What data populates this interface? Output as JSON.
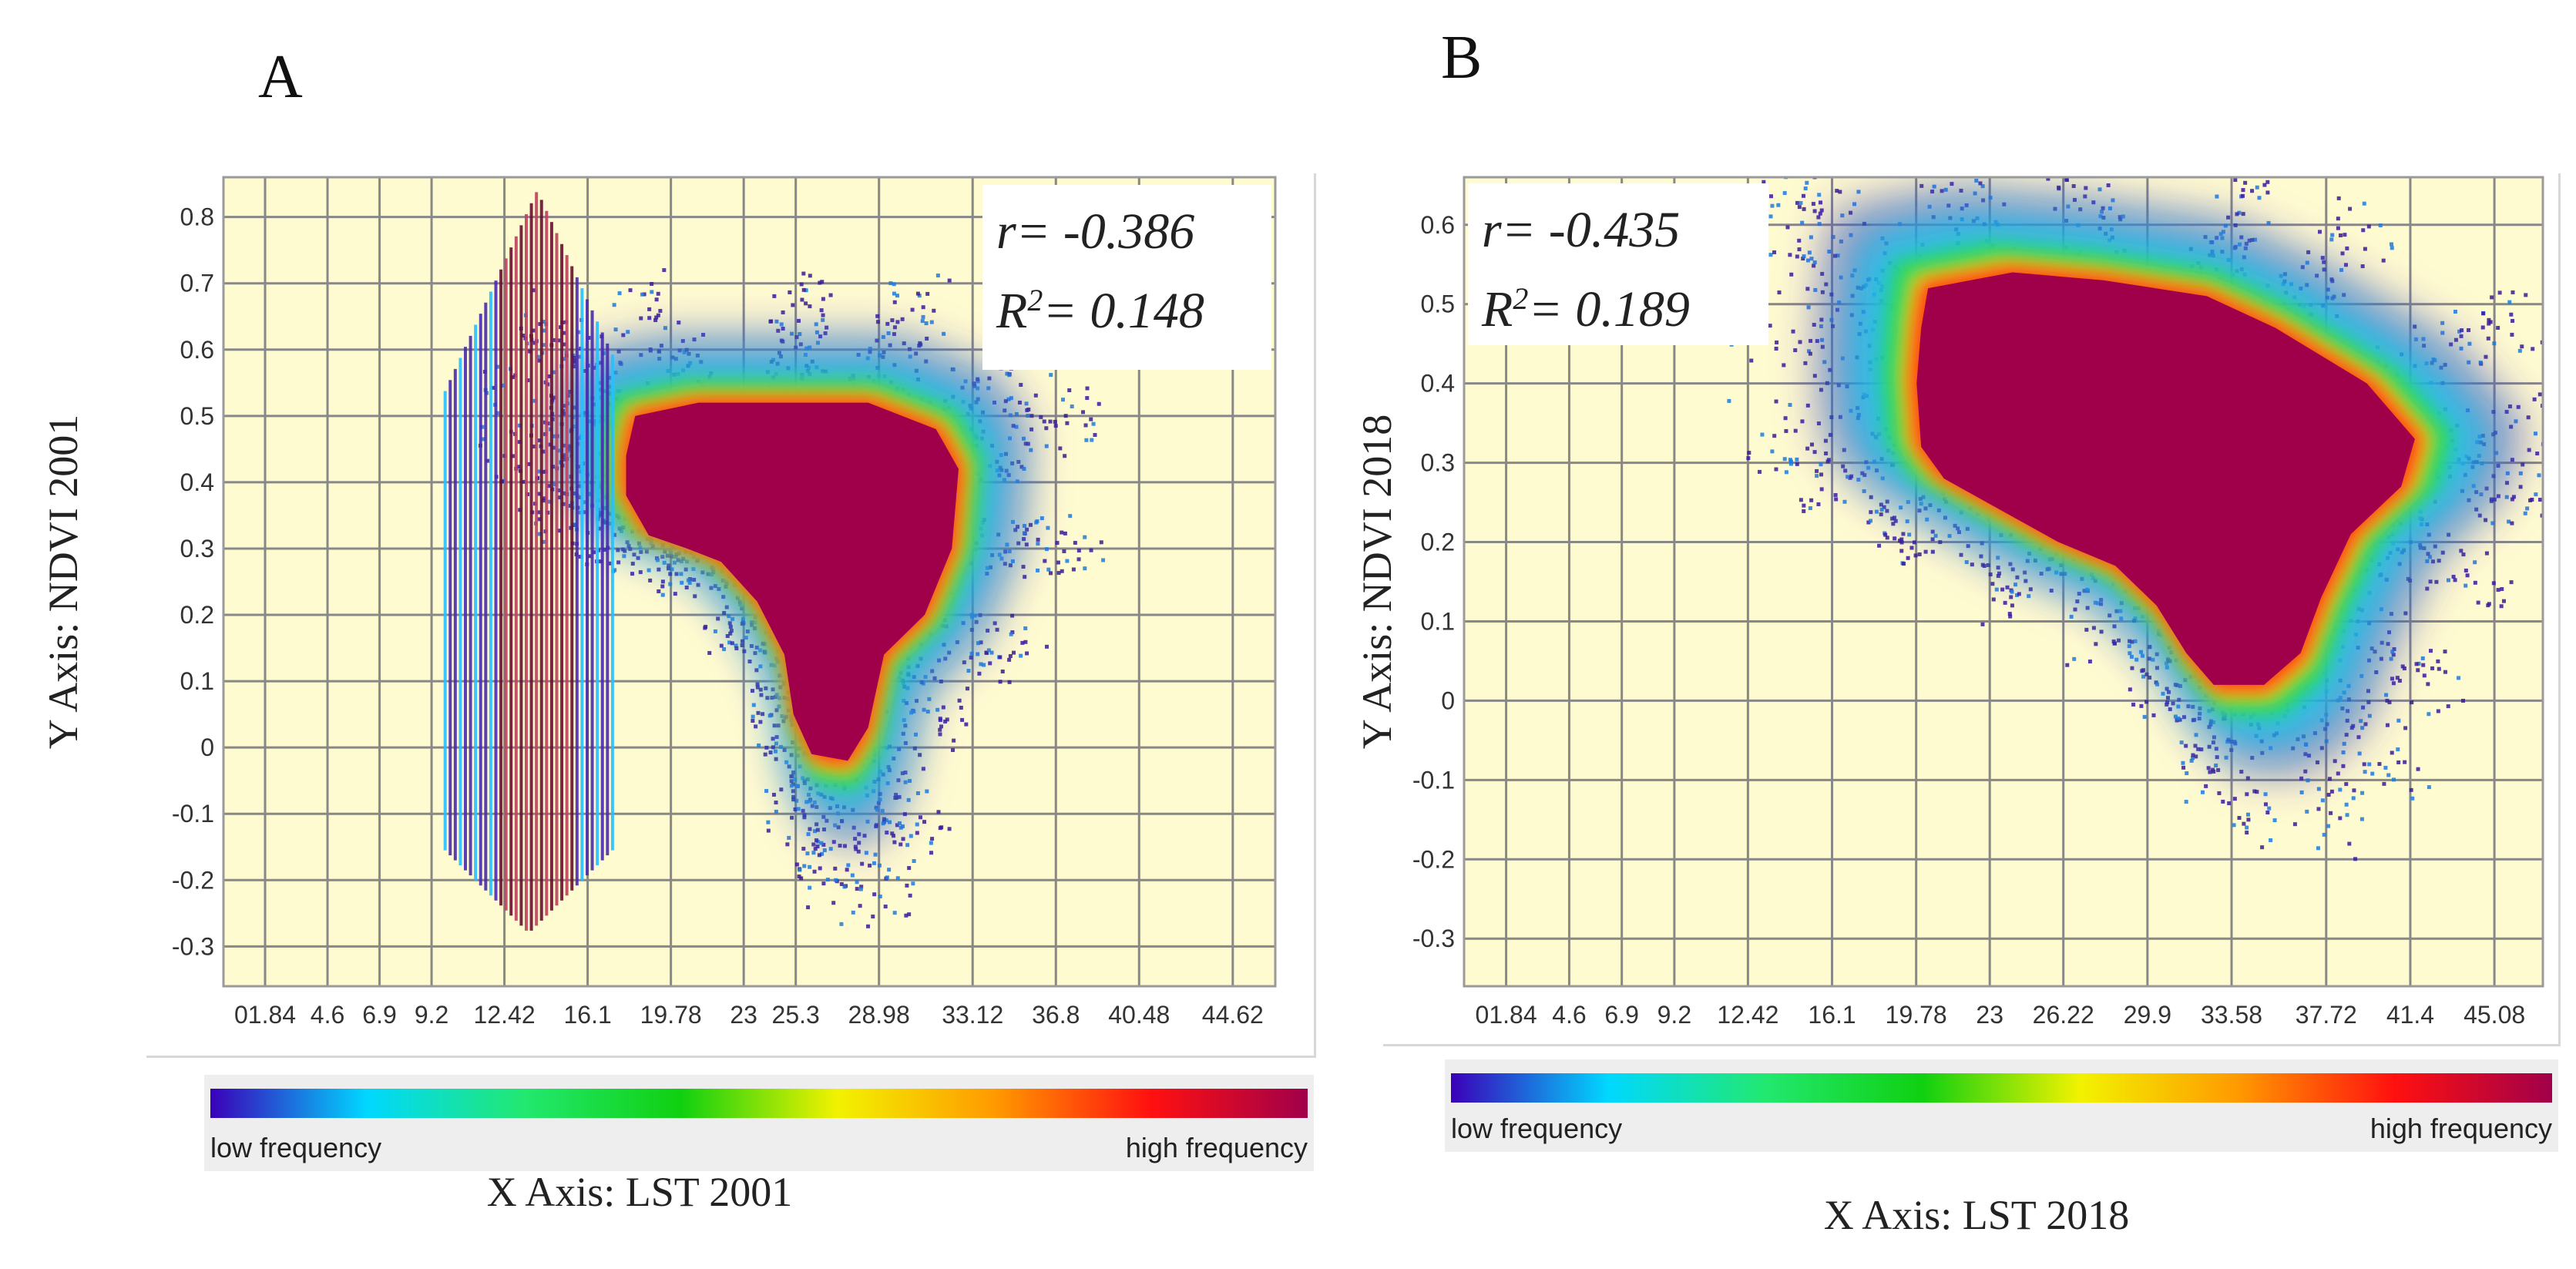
{
  "colors": {
    "plot_bg": "#fffbd0",
    "grid": "#888888",
    "core": "#a0004a",
    "legend_panel": "#eeeeee"
  },
  "legend": {
    "low": "low frequency",
    "high": "high frequency",
    "gradient": [
      "#3a00b8",
      "#00d8ff",
      "#22e870",
      "#10d010",
      "#f2f200",
      "#ff9a00",
      "#ff1010",
      "#a0004a"
    ]
  },
  "chart_data": [
    {
      "panel": "A",
      "type": "scatter",
      "subtype": "density scatter",
      "xlabel": "X Axis: LST 2001",
      "ylabel": "Y Axis: NDVI 2001",
      "xticks": [
        "01.84",
        "4.6",
        "6.9",
        "9.2",
        "12.42",
        "16.1",
        "19.78",
        "23",
        "25.3",
        "28.98",
        "33.12",
        "36.8",
        "40.48",
        "44.62"
      ],
      "xtick_values": [
        1.84,
        4.6,
        6.9,
        9.2,
        12.42,
        16.1,
        19.78,
        23,
        25.3,
        28.98,
        33.12,
        36.8,
        40.48,
        44.62
      ],
      "yticks": [
        "0.8",
        "0.7",
        "0.6",
        "0.5",
        "0.4",
        "0.3",
        "0.2",
        "0.1",
        "0",
        "-0.1",
        "-0.2",
        "-0.3"
      ],
      "ytick_values": [
        0.8,
        0.7,
        0.6,
        0.5,
        0.4,
        0.3,
        0.2,
        0.1,
        0,
        -0.1,
        -0.2,
        -0.3
      ],
      "xlim": [
        0,
        46.5
      ],
      "ylim": [
        -0.36,
        0.86
      ],
      "r": "r= -0.386",
      "r2_prefix": "R",
      "r2_suffix": "= 0.148",
      "r_value": -0.386,
      "r2_value": 0.148,
      "core_outline": [
        [
          18.2,
          0.5
        ],
        [
          21,
          0.52
        ],
        [
          25.3,
          0.52
        ],
        [
          28.5,
          0.52
        ],
        [
          31.5,
          0.48
        ],
        [
          32.5,
          0.42
        ],
        [
          32.2,
          0.3
        ],
        [
          31,
          0.2
        ],
        [
          29.2,
          0.14
        ],
        [
          28.5,
          0.03
        ],
        [
          27.6,
          -0.02
        ],
        [
          26,
          -0.01
        ],
        [
          25.2,
          0.05
        ],
        [
          24.8,
          0.14
        ],
        [
          23.6,
          0.22
        ],
        [
          22,
          0.28
        ],
        [
          20.5,
          0.3
        ],
        [
          18.8,
          0.32
        ],
        [
          17.8,
          0.38
        ],
        [
          17.8,
          0.44
        ]
      ],
      "stripes": {
        "x_range": [
          9.8,
          17.2
        ],
        "y_range": [
          -0.28,
          0.84
        ]
      }
    },
    {
      "panel": "B",
      "type": "scatter",
      "subtype": "density scatter",
      "xlabel": "X Axis: LST 2018",
      "ylabel": "Y Axis: NDVI 2018",
      "xticks": [
        "01.84",
        "4.6",
        "6.9",
        "9.2",
        "12.42",
        "16.1",
        "19.78",
        "23",
        "26.22",
        "29.9",
        "33.58",
        "37.72",
        "41.4",
        "45.08"
      ],
      "xtick_values": [
        1.84,
        4.6,
        6.9,
        9.2,
        12.42,
        16.1,
        19.78,
        23,
        26.22,
        29.9,
        33.58,
        37.72,
        41.4,
        45.08
      ],
      "yticks": [
        "0.6",
        "0.5",
        "0.4",
        "0.3",
        "0.2",
        "0.1",
        "0",
        "-0.1",
        "-0.2",
        "-0.3"
      ],
      "ytick_values": [
        0.6,
        0.5,
        0.4,
        0.3,
        0.2,
        0.1,
        0,
        -0.1,
        -0.2,
        -0.3
      ],
      "xlim": [
        0,
        47.2
      ],
      "ylim": [
        -0.36,
        0.66
      ],
      "r": "r= -0.435",
      "r2_prefix": "R",
      "r2_suffix": "= 0.189",
      "r_value": -0.435,
      "r2_value": 0.189,
      "core_outline": [
        [
          20.3,
          0.52
        ],
        [
          24,
          0.54
        ],
        [
          28,
          0.53
        ],
        [
          32.5,
          0.51
        ],
        [
          35.5,
          0.47
        ],
        [
          39.5,
          0.4
        ],
        [
          41.6,
          0.33
        ],
        [
          41,
          0.27
        ],
        [
          38.8,
          0.21
        ],
        [
          37.5,
          0.13
        ],
        [
          36.6,
          0.06
        ],
        [
          35,
          0.02
        ],
        [
          32.8,
          0.02
        ],
        [
          31.6,
          0.06
        ],
        [
          30.3,
          0.12
        ],
        [
          28.5,
          0.17
        ],
        [
          26,
          0.2
        ],
        [
          23.5,
          0.24
        ],
        [
          21,
          0.28
        ],
        [
          20,
          0.32
        ],
        [
          19.8,
          0.4
        ],
        [
          20,
          0.47
        ]
      ],
      "stripes": null
    }
  ]
}
